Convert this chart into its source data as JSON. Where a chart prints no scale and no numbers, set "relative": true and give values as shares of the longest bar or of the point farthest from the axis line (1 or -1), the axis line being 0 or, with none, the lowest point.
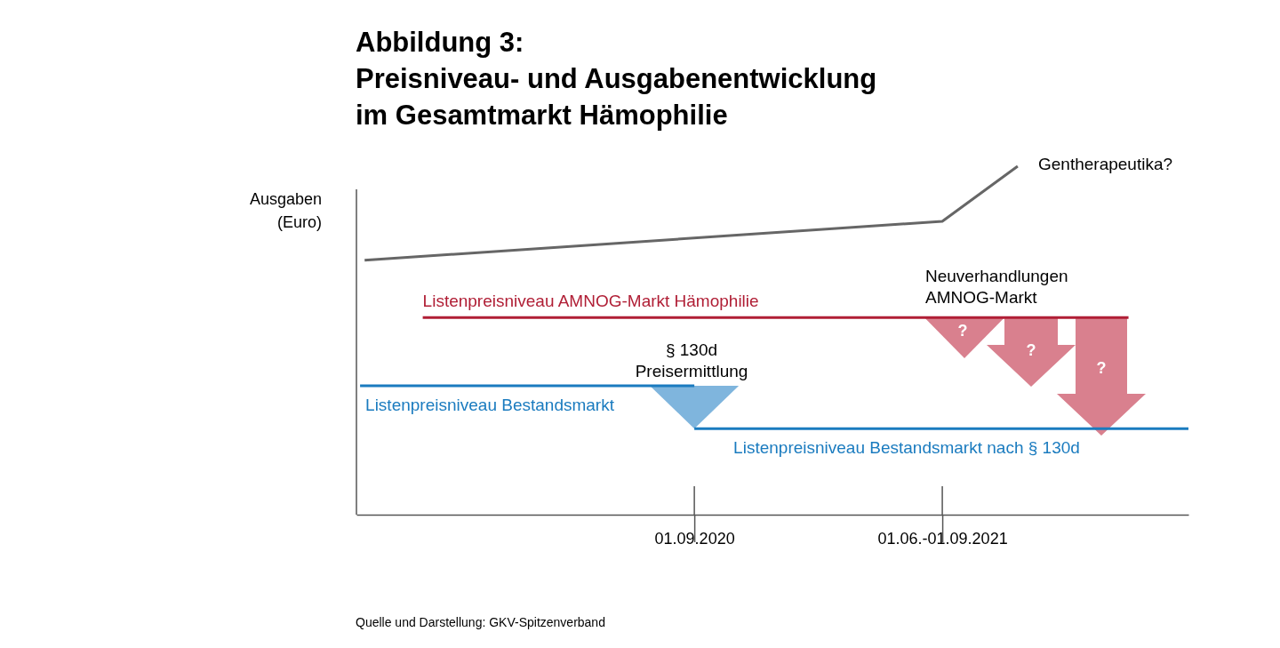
{
  "chart_data": {
    "type": "line",
    "title": "Abbildung 3:\nPreisniveau- und Ausgabenentwicklung\nim Gesamtmarkt Hämophilie",
    "ylabel": "Ausgaben\n(Euro)",
    "relative": true,
    "xlim": [
      "2019-08-26",
      "2022-02-27"
    ],
    "xticks": [
      {
        "value": "2020-09-01",
        "label": "01.09.2020"
      },
      {
        "value": "2021-06-01",
        "label": "01.06.-01.09.2021"
      }
    ],
    "series": [
      {
        "color": "#666666",
        "x": [
          "2019-09-04",
          "2021-06-01",
          "2021-08-23"
        ],
        "values": [
          0.73,
          0.842,
          1
        ]
      },
      {
        "name": "Listenpreisniveau AMNOG-Markt Hämophilie",
        "color": "#b01e35",
        "x": [
          "2019-11-07",
          "2021-12-23"
        ],
        "values": [
          0.566,
          0.566
        ]
      },
      {
        "name": "Listenpreisniveau Bestandsmarkt",
        "color": "#1a7bbf",
        "x": [
          "2019-08-30",
          "2020-09-01"
        ],
        "values": [
          0.37,
          0.37
        ]
      },
      {
        "name": "Listenpreisniveau Bestandsmarkt nach § 130d",
        "color": "#1a7bbf",
        "x": [
          "2020-09-01",
          "2022-02-27"
        ],
        "values": [
          0.247,
          0.247
        ]
      }
    ],
    "annotations": [
      "§ 130d\nPreisermittlung",
      "Neuverhandlungen\nAMNOG-Markt",
      "Gentherapeutika?",
      "?",
      "?",
      "?",
      "Quelle und Darstellung: GKV-Spitzenverband"
    ],
    "grid": false,
    "marker": "none",
    "line_style": "solid"
  }
}
